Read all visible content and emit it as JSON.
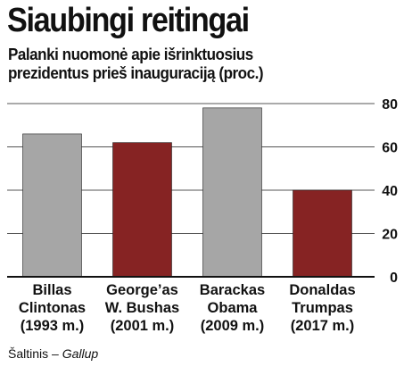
{
  "header": {
    "title": "Siaubingi reitingai",
    "subtitle_line1": "Palanki nuomonė apie išrinktuosius",
    "subtitle_line2": "prezidentus prieš inauguraciją (proc.)"
  },
  "source": {
    "label": "Šaltinis – ",
    "name": "Gallup"
  },
  "colors": {
    "gray_bar": "#a6a6a6",
    "red_bar": "#862323",
    "grid": "#555555",
    "axis": "#111111"
  },
  "chart_data": {
    "type": "bar",
    "title": "Siaubingi reitingai",
    "subtitle": "Palanki nuomonė apie išrinktuosius prezidentus prieš inauguraciją (proc.)",
    "categories": [
      [
        "Billas",
        "Clintonas",
        "(1993 m.)"
      ],
      [
        "George’as",
        "W. Bushas",
        "(2001 m.)"
      ],
      [
        "Barackas",
        "Obama",
        "(2009 m.)"
      ],
      [
        "Donaldas",
        "Trumpas",
        "(2017 m.)"
      ]
    ],
    "values": [
      66,
      62,
      78,
      40
    ],
    "bar_colors": [
      "#a6a6a6",
      "#862323",
      "#a6a6a6",
      "#862323"
    ],
    "y_ticks": [
      0,
      20,
      40,
      60,
      80
    ],
    "ylim": [
      0,
      80
    ],
    "y_axis_position": "right",
    "grid": true,
    "legend": "none"
  }
}
